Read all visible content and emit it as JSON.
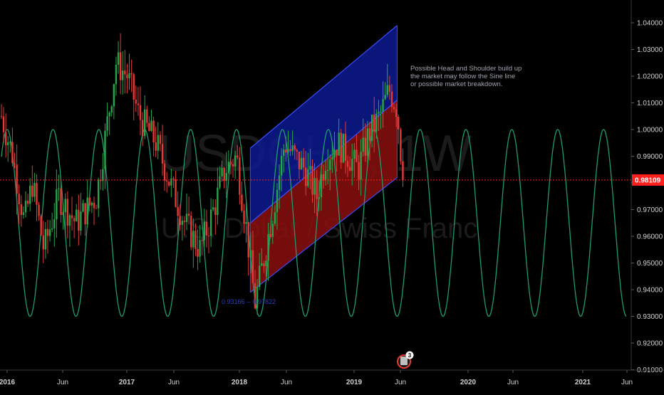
{
  "chart_data": {
    "type": "candlestick",
    "symbol_watermark": "USDCHF, 1W",
    "subtitle_watermark": "U.S. Dollar / Swiss Franc",
    "y_axis": {
      "ylim": [
        0.905,
        1.043
      ],
      "ticks": [
        "0.91000",
        "0.92000",
        "0.93000",
        "0.94000",
        "0.95000",
        "0.96000",
        "0.97000",
        "0.98000",
        "0.99000",
        "1.00000",
        "1.01000",
        "1.02000",
        "1.03000",
        "1.04000"
      ]
    },
    "x_axis": {
      "ticks": [
        {
          "label": "2016",
          "year": true
        },
        {
          "label": "Jun",
          "year": false
        },
        {
          "label": "2017",
          "year": true
        },
        {
          "label": "Jun",
          "year": false
        },
        {
          "label": "2018",
          "year": true
        },
        {
          "label": "Jun",
          "year": false
        },
        {
          "label": "2019",
          "year": true
        },
        {
          "label": "Jun",
          "year": false
        },
        {
          "label": "2020",
          "year": true
        },
        {
          "label": "Jun",
          "year": false
        },
        {
          "label": "2021",
          "year": true
        },
        {
          "label": "Jun",
          "year": false
        }
      ]
    },
    "current_price": {
      "value": 0.98109,
      "label": "0.98109",
      "color": "#ff1f1f"
    },
    "colors": {
      "up": "#26a64a",
      "down": "#e53935",
      "sine": "#1e9c6e",
      "upper_band": "#0d1a8f",
      "lower_band": "#8a0f0f",
      "band_edge": "#3b4cff"
    },
    "price_path_key_points": [
      [
        2015.95,
        1.005
      ],
      [
        2016.05,
        0.99
      ],
      [
        2016.15,
        0.965
      ],
      [
        2016.22,
        0.98
      ],
      [
        2016.32,
        0.955
      ],
      [
        2016.45,
        0.975
      ],
      [
        2016.6,
        0.965
      ],
      [
        2016.78,
        0.975
      ],
      [
        2016.95,
        1.025
      ],
      [
        2017.05,
        1.02
      ],
      [
        2017.15,
        1.005
      ],
      [
        2017.3,
        0.995
      ],
      [
        2017.42,
        0.98
      ],
      [
        2017.55,
        0.965
      ],
      [
        2017.68,
        0.955
      ],
      [
        2017.8,
        0.97
      ],
      [
        2017.9,
        0.985
      ],
      [
        2018.0,
        0.99
      ],
      [
        2018.08,
        0.965
      ],
      [
        2018.16,
        0.935
      ],
      [
        2018.23,
        0.95
      ],
      [
        2018.32,
        0.97
      ],
      [
        2018.42,
        0.995
      ],
      [
        2018.5,
        0.99
      ],
      [
        2018.6,
        0.985
      ],
      [
        2018.7,
        0.975
      ],
      [
        2018.78,
        0.99
      ],
      [
        2018.88,
        0.995
      ],
      [
        2018.98,
        0.99
      ],
      [
        2019.06,
        0.985
      ],
      [
        2019.15,
        0.998
      ],
      [
        2019.25,
        1.005
      ],
      [
        2019.33,
        1.015
      ],
      [
        2019.4,
        1.008
      ],
      [
        2019.45,
        0.982
      ]
    ],
    "sine_wave": {
      "center": 0.965,
      "amplitude": 0.035,
      "period_years": 0.4,
      "x_start": 2015.95,
      "x_end": 2021.4,
      "peak_at": 2016.0
    },
    "regression_channel": {
      "x_start": 2018.12,
      "x_end": 2019.4,
      "upper_start": 0.993,
      "upper_end": 1.039,
      "mid_start": 0.965,
      "mid_end": 1.011,
      "lower_start": 0.939,
      "lower_end": 0.982
    },
    "annotations": {
      "note_lines": [
        "Possible Head and Shoulder build up",
        "the market may follow the Sine line",
        "or possible market breakdown."
      ],
      "channel_anchor_text": "0.93166 -- 0.97822"
    },
    "badge": {
      "count": "3"
    }
  }
}
